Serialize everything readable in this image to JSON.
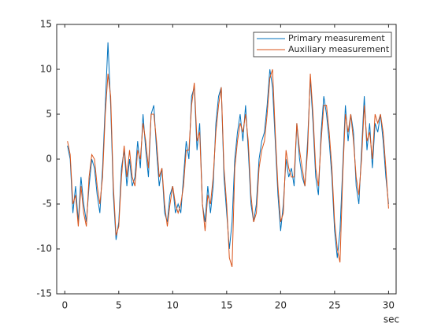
{
  "chart_data": {
    "type": "line",
    "x_label": "sec",
    "x": [
      0.25,
      0.5,
      0.75,
      1,
      1.25,
      1.5,
      1.75,
      2,
      2.25,
      2.5,
      2.75,
      3,
      3.25,
      3.5,
      3.75,
      4,
      4.25,
      4.5,
      4.75,
      5,
      5.25,
      5.5,
      5.75,
      6,
      6.25,
      6.5,
      6.75,
      7,
      7.25,
      7.5,
      7.75,
      8,
      8.25,
      8.5,
      8.75,
      9,
      9.25,
      9.5,
      9.75,
      10,
      10.25,
      10.5,
      10.75,
      11,
      11.25,
      11.5,
      11.75,
      12,
      12.25,
      12.5,
      12.75,
      13,
      13.25,
      13.5,
      13.75,
      14,
      14.25,
      14.5,
      14.75,
      15,
      15.25,
      15.5,
      15.75,
      16,
      16.25,
      16.5,
      16.75,
      17,
      17.25,
      17.5,
      17.75,
      18,
      18.25,
      18.5,
      18.75,
      19,
      19.25,
      19.5,
      19.75,
      20,
      20.25,
      20.5,
      20.75,
      21,
      21.25,
      21.5,
      21.75,
      22,
      22.25,
      22.5,
      22.75,
      23,
      23.25,
      23.5,
      23.75,
      24,
      24.25,
      24.5,
      24.75,
      25,
      25.25,
      25.5,
      25.75,
      26,
      26.25,
      26.5,
      26.75,
      27,
      27.25,
      27.5,
      27.75,
      28,
      28.25,
      28.5,
      28.75,
      29,
      29.25,
      29.5,
      29.75,
      30
    ],
    "series": [
      {
        "name": "Primary measurement",
        "color": "#0072bd",
        "values": [
          1.5,
          0,
          -6,
          -3,
          -7,
          -2,
          -5,
          -7,
          -3,
          0,
          -1,
          -4,
          -6,
          -1,
          6,
          13,
          6,
          -4,
          -9,
          -7,
          -1,
          1,
          -3,
          0,
          -3,
          -2,
          2,
          -1,
          5,
          1,
          -2,
          5,
          6,
          1,
          -3,
          -1,
          -6,
          -7,
          -4,
          -3,
          -6,
          -5,
          -6,
          -2,
          2,
          0,
          7,
          8,
          1,
          4,
          -5,
          -7,
          -3,
          -6,
          -3,
          4,
          7,
          8,
          -2,
          -6,
          -10,
          -7,
          0,
          3,
          5,
          2,
          6,
          1,
          -5,
          -7,
          -5,
          0,
          2,
          3,
          6,
          10,
          8,
          2,
          -4,
          -8,
          -5,
          0,
          -2,
          -1,
          -3,
          4,
          0,
          -2,
          -3,
          2,
          9,
          4,
          -2,
          -4,
          3,
          7,
          5,
          2,
          -2,
          -8,
          -11,
          -8,
          -1,
          6,
          2,
          5,
          3,
          -3,
          -5,
          1,
          7,
          1,
          4,
          -1,
          4,
          3,
          5,
          2,
          -2,
          -5
        ]
      },
      {
        "name": "Auxiliary measurement",
        "color": "#d95319",
        "values": [
          2,
          0.5,
          -5,
          -4,
          -7.5,
          -3,
          -6,
          -7.5,
          -2,
          0.5,
          0,
          -3,
          -5,
          -2,
          5,
          9.5,
          7,
          -3,
          -8.5,
          -7.5,
          -2,
          1.5,
          -2,
          1,
          -2,
          -3,
          1,
          0,
          4,
          2,
          -1,
          5,
          5,
          2,
          -2,
          -1,
          -5,
          -7.5,
          -5,
          -3,
          -5,
          -6,
          -5,
          -3,
          1,
          1,
          6,
          8.5,
          2,
          3,
          -5,
          -8,
          -4,
          -5,
          -2,
          3,
          6,
          8,
          -1,
          -5,
          -11,
          -12,
          -1,
          2,
          4,
          3,
          5,
          2,
          -4,
          -7,
          -6,
          -1,
          1,
          2,
          5,
          9,
          10,
          3,
          -3,
          -7,
          -6,
          1,
          -1,
          -2,
          -2,
          4,
          1,
          -1,
          -3,
          1,
          9.5,
          5,
          -1,
          -3,
          2,
          6,
          6,
          3,
          -1,
          -7,
          -10,
          -11.5,
          -2,
          5,
          3,
          5,
          2,
          -2,
          -4,
          0,
          6,
          2,
          3,
          0,
          5,
          4,
          5,
          3,
          -1,
          -5.5
        ]
      }
    ],
    "xlim": [
      -0.75,
      30.7
    ],
    "xticks": [
      0,
      5,
      10,
      15,
      20,
      25,
      30
    ],
    "ylim": [
      -15,
      15
    ],
    "yticks": [
      -15,
      -10,
      -5,
      0,
      5,
      10,
      15
    ],
    "legend": "northeast"
  }
}
